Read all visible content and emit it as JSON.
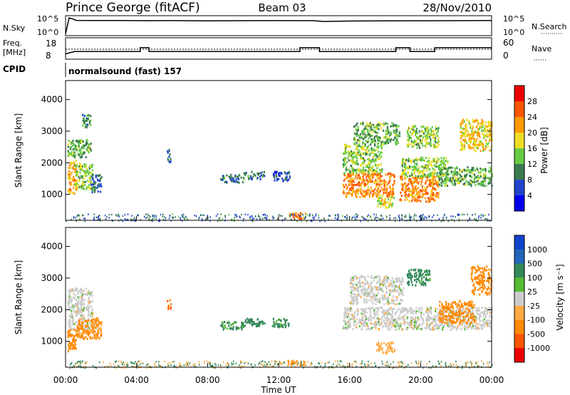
{
  "header": {
    "station": "Prince George (fitACF)",
    "beam": "Beam 03",
    "date": "28/Nov/2010"
  },
  "noise_panel": {
    "left_label": "N.Sky",
    "right_label": "N.Search",
    "left_ticks": [
      "10^5",
      "10^0"
    ],
    "right_ticks": [
      "10^5",
      "10^0"
    ]
  },
  "freq_panel": {
    "left_label_1": "Freq.",
    "left_label_2": "[MHz]",
    "right_label": "Nave",
    "left_ticks": [
      "18",
      "8"
    ],
    "right_ticks": [
      "60",
      "0"
    ]
  },
  "cpid": {
    "label": "CPID",
    "text": "normalsound (fast) 157"
  },
  "power_panel": {
    "ylabel": "Slant Range [km]",
    "yticks": [
      "4000",
      "3000",
      "2000",
      "1000"
    ],
    "colorbar_label": "Power [dB]",
    "colorbar_ticks": [
      "28",
      "24",
      "20",
      "16",
      "12",
      "8",
      "4"
    ],
    "colors": [
      "#0000ee",
      "#2244cc",
      "#3a7a50",
      "#66cc44",
      "#eedd22",
      "#ff9900",
      "#ff5500",
      "#ee0000"
    ]
  },
  "velocity_panel": {
    "ylabel": "Slant Range [km]",
    "yticks": [
      "4000",
      "3000",
      "2000",
      "1000"
    ],
    "colorbar_label": "Velocity [m s⁻¹]",
    "colorbar_ticks": [
      "1000",
      "500",
      "100",
      "25",
      "-25",
      "-100",
      "-500",
      "-1000"
    ],
    "colors": [
      "#1144cc",
      "#2266bb",
      "#33885a",
      "#55bb33",
      "#cccccc",
      "#ffaa44",
      "#ff8800",
      "#ff5500",
      "#ee0000"
    ]
  },
  "x_axis": {
    "ticks": [
      "00:00",
      "04:00",
      "08:00",
      "12:00",
      "16:00",
      "20:00",
      "00:00"
    ],
    "label": "Time UT"
  },
  "chart_data": [
    {
      "type": "line",
      "x_range_hours": [
        0,
        24
      ],
      "y_scale": "log",
      "ylim": [
        1,
        100000
      ],
      "series": [
        {
          "x": [
            0,
            0.2,
            0.4,
            0.6,
            1.5,
            3,
            4.5,
            6,
            8,
            10,
            12,
            14,
            14.5,
            16,
            18,
            20,
            22,
            24
          ],
          "y": [
            2,
            60000,
            30000,
            12000,
            11000,
            11000,
            10000,
            10500,
            9000,
            10000,
            10500,
            10000,
            6000,
            8000,
            9000,
            9500,
            10000,
            11000
          ]
        }
      ]
    },
    {
      "type": "line",
      "x_range_hours": [
        0,
        24
      ],
      "ylim": [
        8,
        20
      ],
      "series": [
        {
          "x": [
            0,
            0.5,
            4.2,
            4.2,
            4.7,
            4.7,
            13.2,
            13.2,
            14.3,
            14.3,
            18.6,
            18.6,
            19.4,
            19.4,
            20.8,
            20.8,
            24
          ],
          "y": [
            10.5,
            12,
            12,
            14.5,
            14.5,
            12,
            12,
            14.5,
            14.5,
            12,
            12,
            14.5,
            14.5,
            12,
            12,
            14.5,
            14.5
          ]
        },
        {
          "x": [
            0,
            24
          ],
          "y": [
            13,
            13
          ],
          "style": "dotted"
        }
      ]
    },
    {
      "type": "heatmap",
      "x_range_hours": [
        0,
        24
      ],
      "y_range_km": [
        180,
        4600
      ],
      "value_range_db": [
        0,
        30
      ],
      "blobs": [
        {
          "t0": 0.1,
          "t1": 1.4,
          "r0": 2200,
          "r1": 2750,
          "v": 12
        },
        {
          "t0": 0.1,
          "t1": 0.6,
          "r0": 1050,
          "r1": 2100,
          "v": 20
        },
        {
          "t0": 0.5,
          "t1": 1.5,
          "r0": 1200,
          "r1": 2000,
          "v": 14
        },
        {
          "t0": 1.4,
          "t1": 2.0,
          "r0": 1100,
          "r1": 1650,
          "v": 8
        },
        {
          "t0": 0.9,
          "t1": 1.4,
          "r0": 3150,
          "r1": 3550,
          "v": 10
        },
        {
          "t0": 5.7,
          "t1": 5.9,
          "r0": 2050,
          "r1": 2450,
          "v": 6
        },
        {
          "t0": 8.7,
          "t1": 10.0,
          "r0": 1400,
          "r1": 1650,
          "v": 8
        },
        {
          "t0": 10.0,
          "t1": 11.2,
          "r0": 1500,
          "r1": 1750,
          "v": 8
        },
        {
          "t0": 11.6,
          "t1": 12.6,
          "r0": 1450,
          "r1": 1750,
          "v": 6
        },
        {
          "t0": 12.5,
          "t1": 13.5,
          "r0": 260,
          "r1": 450,
          "v": 22
        },
        {
          "t0": 15.6,
          "t1": 18.5,
          "r0": 950,
          "r1": 1700,
          "v": 22
        },
        {
          "t0": 15.6,
          "t1": 17.8,
          "r0": 1700,
          "r1": 2600,
          "v": 14
        },
        {
          "t0": 16.2,
          "t1": 18.8,
          "r0": 2600,
          "r1": 3300,
          "v": 12
        },
        {
          "t0": 17.5,
          "t1": 18.5,
          "r0": 600,
          "r1": 950,
          "v": 16
        },
        {
          "t0": 18.8,
          "t1": 21.0,
          "r0": 800,
          "r1": 1600,
          "v": 22
        },
        {
          "t0": 18.9,
          "t1": 21.5,
          "r0": 1600,
          "r1": 2200,
          "v": 14
        },
        {
          "t0": 19.2,
          "t1": 21.0,
          "r0": 2500,
          "r1": 3200,
          "v": 14
        },
        {
          "t0": 21.0,
          "t1": 24.0,
          "r0": 1300,
          "r1": 1900,
          "v": 12
        },
        {
          "t0": 22.2,
          "t1": 24.0,
          "r0": 2400,
          "r1": 3400,
          "v": 18
        }
      ]
    },
    {
      "type": "heatmap",
      "x_range_hours": [
        0,
        24
      ],
      "y_range_km": [
        180,
        4600
      ],
      "value_range_ms": [
        -1000,
        1000
      ],
      "blobs": [
        {
          "t0": 0.1,
          "t1": 1.5,
          "r0": 1400,
          "r1": 2700,
          "v": 0
        },
        {
          "t0": 0.1,
          "t1": 0.6,
          "r0": 700,
          "r1": 1400,
          "v": -300
        },
        {
          "t0": 0.6,
          "t1": 1.8,
          "r0": 1100,
          "r1": 1700,
          "v": -150
        },
        {
          "t0": 1.4,
          "t1": 2.0,
          "r0": 1100,
          "r1": 1800,
          "v": -120
        },
        {
          "t0": 5.7,
          "t1": 5.9,
          "r0": 2050,
          "r1": 2350,
          "v": -400
        },
        {
          "t0": 8.7,
          "t1": 10.0,
          "r0": 1400,
          "r1": 1650,
          "v": 120
        },
        {
          "t0": 10.0,
          "t1": 11.2,
          "r0": 1500,
          "r1": 1750,
          "v": 300
        },
        {
          "t0": 11.6,
          "t1": 12.6,
          "r0": 1450,
          "r1": 1750,
          "v": 150
        },
        {
          "t0": 12.5,
          "t1": 13.5,
          "r0": 250,
          "r1": 450,
          "v": -100
        },
        {
          "t0": 15.6,
          "t1": 24.0,
          "r0": 1400,
          "r1": 2100,
          "v": 0
        },
        {
          "t0": 16.0,
          "t1": 19.0,
          "r0": 2200,
          "r1": 3100,
          "v": 0
        },
        {
          "t0": 17.5,
          "t1": 18.5,
          "r0": 650,
          "r1": 1000,
          "v": -60
        },
        {
          "t0": 21.0,
          "t1": 23.0,
          "r0": 1600,
          "r1": 2300,
          "v": -200
        },
        {
          "t0": 22.8,
          "t1": 24.0,
          "r0": 2500,
          "r1": 3400,
          "v": -150
        },
        {
          "t0": 19.2,
          "t1": 20.5,
          "r0": 2800,
          "r1": 3300,
          "v": 150
        }
      ]
    }
  ]
}
